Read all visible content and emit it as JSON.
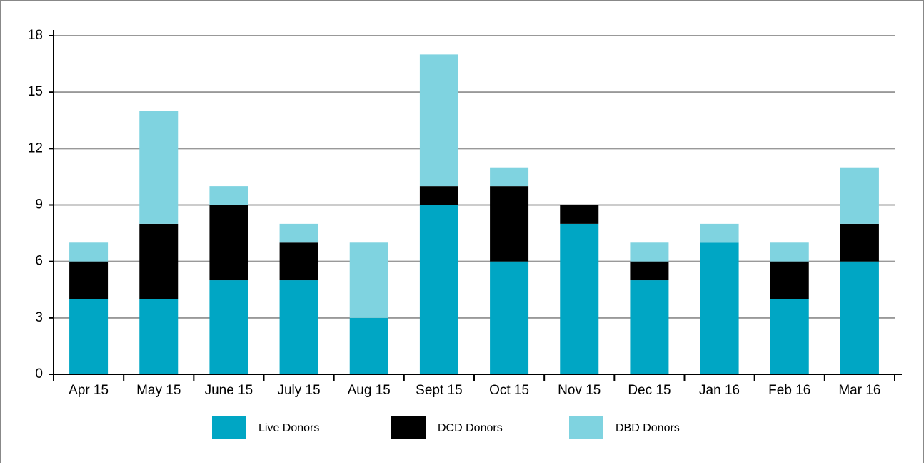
{
  "chart_data": {
    "type": "stacked_bar",
    "categories": [
      "Apr 15",
      "May 15",
      "June 15",
      "July 15",
      "Aug 15",
      "Sept 15",
      "Oct 15",
      "Nov 15",
      "Dec 15",
      "Jan 16",
      "Feb 16",
      "Mar 16"
    ],
    "series": [
      {
        "name": "Live Donors",
        "color": "#00a6c4",
        "values": [
          4,
          4,
          5,
          5,
          3,
          9,
          6,
          8,
          5,
          7,
          4,
          6
        ]
      },
      {
        "name": "DCD Donors",
        "color": "#000000",
        "values": [
          2,
          4,
          4,
          2,
          0,
          1,
          4,
          1,
          1,
          0,
          2,
          2
        ]
      },
      {
        "name": "DBD Donors",
        "color": "#7fd3e0",
        "values": [
          1,
          6,
          1,
          1,
          4,
          7,
          1,
          0,
          1,
          1,
          1,
          3
        ]
      }
    ],
    "ylim": [
      0,
      18
    ],
    "yticks": [
      0,
      3,
      6,
      9,
      12,
      15,
      18
    ],
    "grid": true,
    "legend": "bottom"
  }
}
